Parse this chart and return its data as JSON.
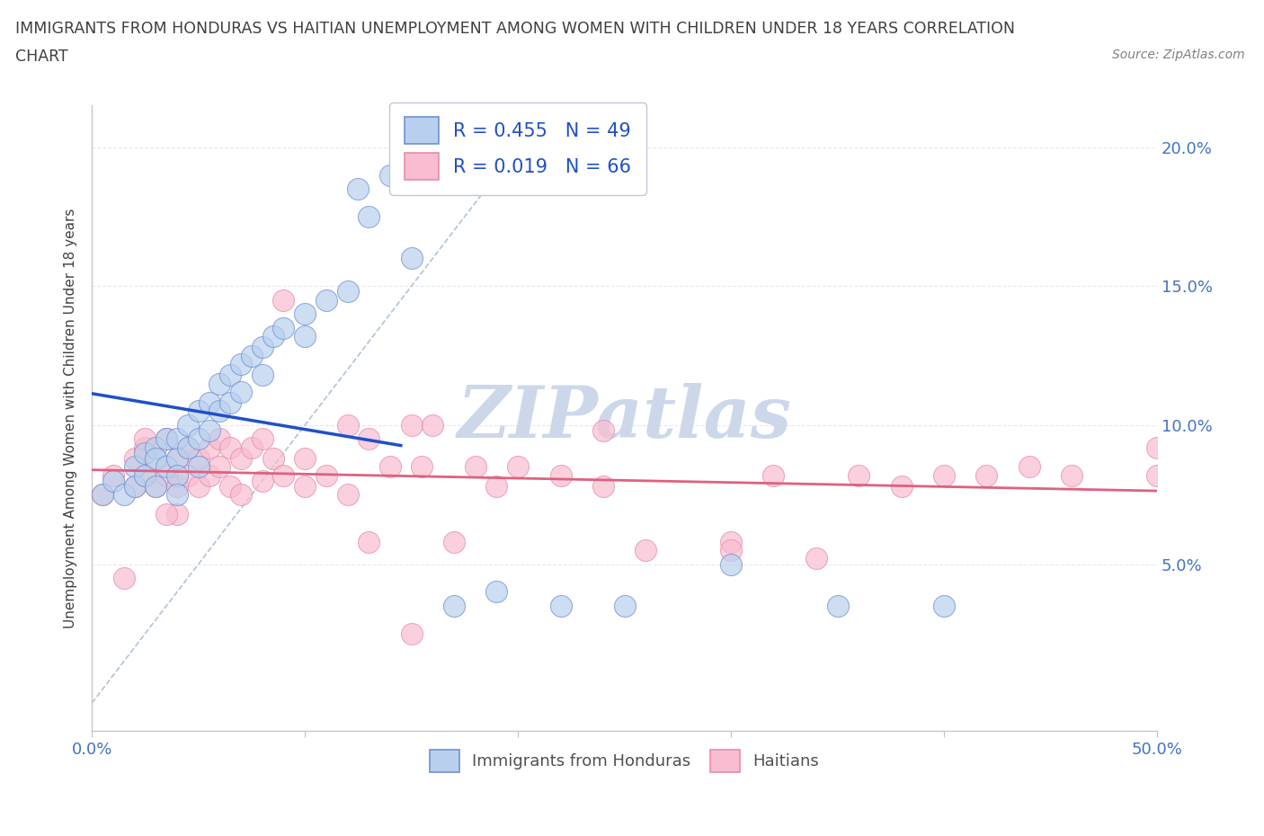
{
  "title_line1": "IMMIGRANTS FROM HONDURAS VS HAITIAN UNEMPLOYMENT AMONG WOMEN WITH CHILDREN UNDER 18 YEARS CORRELATION",
  "title_line2": "CHART",
  "source_text": "Source: ZipAtlas.com",
  "ylabel": "Unemployment Among Women with Children Under 18 years",
  "xlim": [
    0.0,
    0.5
  ],
  "ylim": [
    -0.01,
    0.215
  ],
  "xtick_positions": [
    0.0,
    0.1,
    0.2,
    0.3,
    0.4,
    0.5
  ],
  "xtick_labels": [
    "0.0%",
    "",
    "",
    "",
    "",
    "50.0%"
  ],
  "ytick_positions": [
    0.0,
    0.05,
    0.1,
    0.15,
    0.2
  ],
  "ytick_labels_right": [
    "",
    "5.0%",
    "10.0%",
    "15.0%",
    "20.0%"
  ],
  "honduras_R": 0.455,
  "honduras_N": 49,
  "haiti_R": 0.019,
  "haiti_N": 66,
  "scatter_color_honduras": "#b8d0ee",
  "scatter_color_haiti": "#f8bdd0",
  "edge_color_honduras": "#7090d0",
  "edge_color_haiti": "#e88ca8",
  "line_color_honduras": "#2050c8",
  "line_color_haiti": "#e06080",
  "diagonal_color": "#b0c4d8",
  "watermark_text": "ZIPatlas",
  "watermark_color": "#ccd8ea",
  "background_color": "#ffffff",
  "title_color": "#404040",
  "axis_label_color": "#4472c4",
  "grid_color": "#e8e8e8",
  "legend_text_color": "#2050c8",
  "bottom_legend_text_color": "#505050",
  "legend_border_color": "#c0c8d8",
  "honduras_x": [
    0.005,
    0.01,
    0.015,
    0.02,
    0.02,
    0.025,
    0.025,
    0.03,
    0.03,
    0.03,
    0.035,
    0.035,
    0.04,
    0.04,
    0.04,
    0.04,
    0.045,
    0.045,
    0.05,
    0.05,
    0.05,
    0.055,
    0.055,
    0.06,
    0.06,
    0.065,
    0.065,
    0.07,
    0.07,
    0.075,
    0.08,
    0.08,
    0.085,
    0.09,
    0.1,
    0.1,
    0.11,
    0.12,
    0.125,
    0.13,
    0.14,
    0.15,
    0.17,
    0.19,
    0.22,
    0.25,
    0.3,
    0.35,
    0.4
  ],
  "honduras_y": [
    0.075,
    0.08,
    0.075,
    0.085,
    0.078,
    0.09,
    0.082,
    0.092,
    0.088,
    0.078,
    0.095,
    0.085,
    0.095,
    0.088,
    0.082,
    0.075,
    0.1,
    0.092,
    0.105,
    0.095,
    0.085,
    0.108,
    0.098,
    0.115,
    0.105,
    0.118,
    0.108,
    0.122,
    0.112,
    0.125,
    0.128,
    0.118,
    0.132,
    0.135,
    0.14,
    0.132,
    0.145,
    0.148,
    0.185,
    0.175,
    0.19,
    0.16,
    0.035,
    0.04,
    0.035,
    0.035,
    0.05,
    0.035,
    0.035
  ],
  "haiti_x": [
    0.005,
    0.01,
    0.015,
    0.02,
    0.02,
    0.025,
    0.025,
    0.03,
    0.03,
    0.035,
    0.035,
    0.04,
    0.04,
    0.04,
    0.045,
    0.045,
    0.05,
    0.05,
    0.055,
    0.055,
    0.06,
    0.06,
    0.065,
    0.065,
    0.07,
    0.07,
    0.075,
    0.08,
    0.08,
    0.085,
    0.09,
    0.09,
    0.1,
    0.1,
    0.11,
    0.12,
    0.12,
    0.13,
    0.13,
    0.14,
    0.15,
    0.155,
    0.16,
    0.17,
    0.18,
    0.19,
    0.2,
    0.22,
    0.24,
    0.26,
    0.3,
    0.32,
    0.34,
    0.36,
    0.38,
    0.4,
    0.42,
    0.44,
    0.46,
    0.5,
    0.5,
    0.24,
    0.3,
    0.15,
    0.035,
    0.025
  ],
  "haiti_y": [
    0.075,
    0.082,
    0.045,
    0.088,
    0.078,
    0.092,
    0.082,
    0.088,
    0.078,
    0.095,
    0.082,
    0.088,
    0.078,
    0.068,
    0.092,
    0.082,
    0.088,
    0.078,
    0.092,
    0.082,
    0.095,
    0.085,
    0.092,
    0.078,
    0.088,
    0.075,
    0.092,
    0.095,
    0.08,
    0.088,
    0.145,
    0.082,
    0.088,
    0.078,
    0.082,
    0.1,
    0.075,
    0.095,
    0.058,
    0.085,
    0.1,
    0.085,
    0.1,
    0.058,
    0.085,
    0.078,
    0.085,
    0.082,
    0.078,
    0.055,
    0.058,
    0.082,
    0.052,
    0.082,
    0.078,
    0.082,
    0.082,
    0.085,
    0.082,
    0.092,
    0.082,
    0.098,
    0.055,
    0.025,
    0.068,
    0.095
  ]
}
